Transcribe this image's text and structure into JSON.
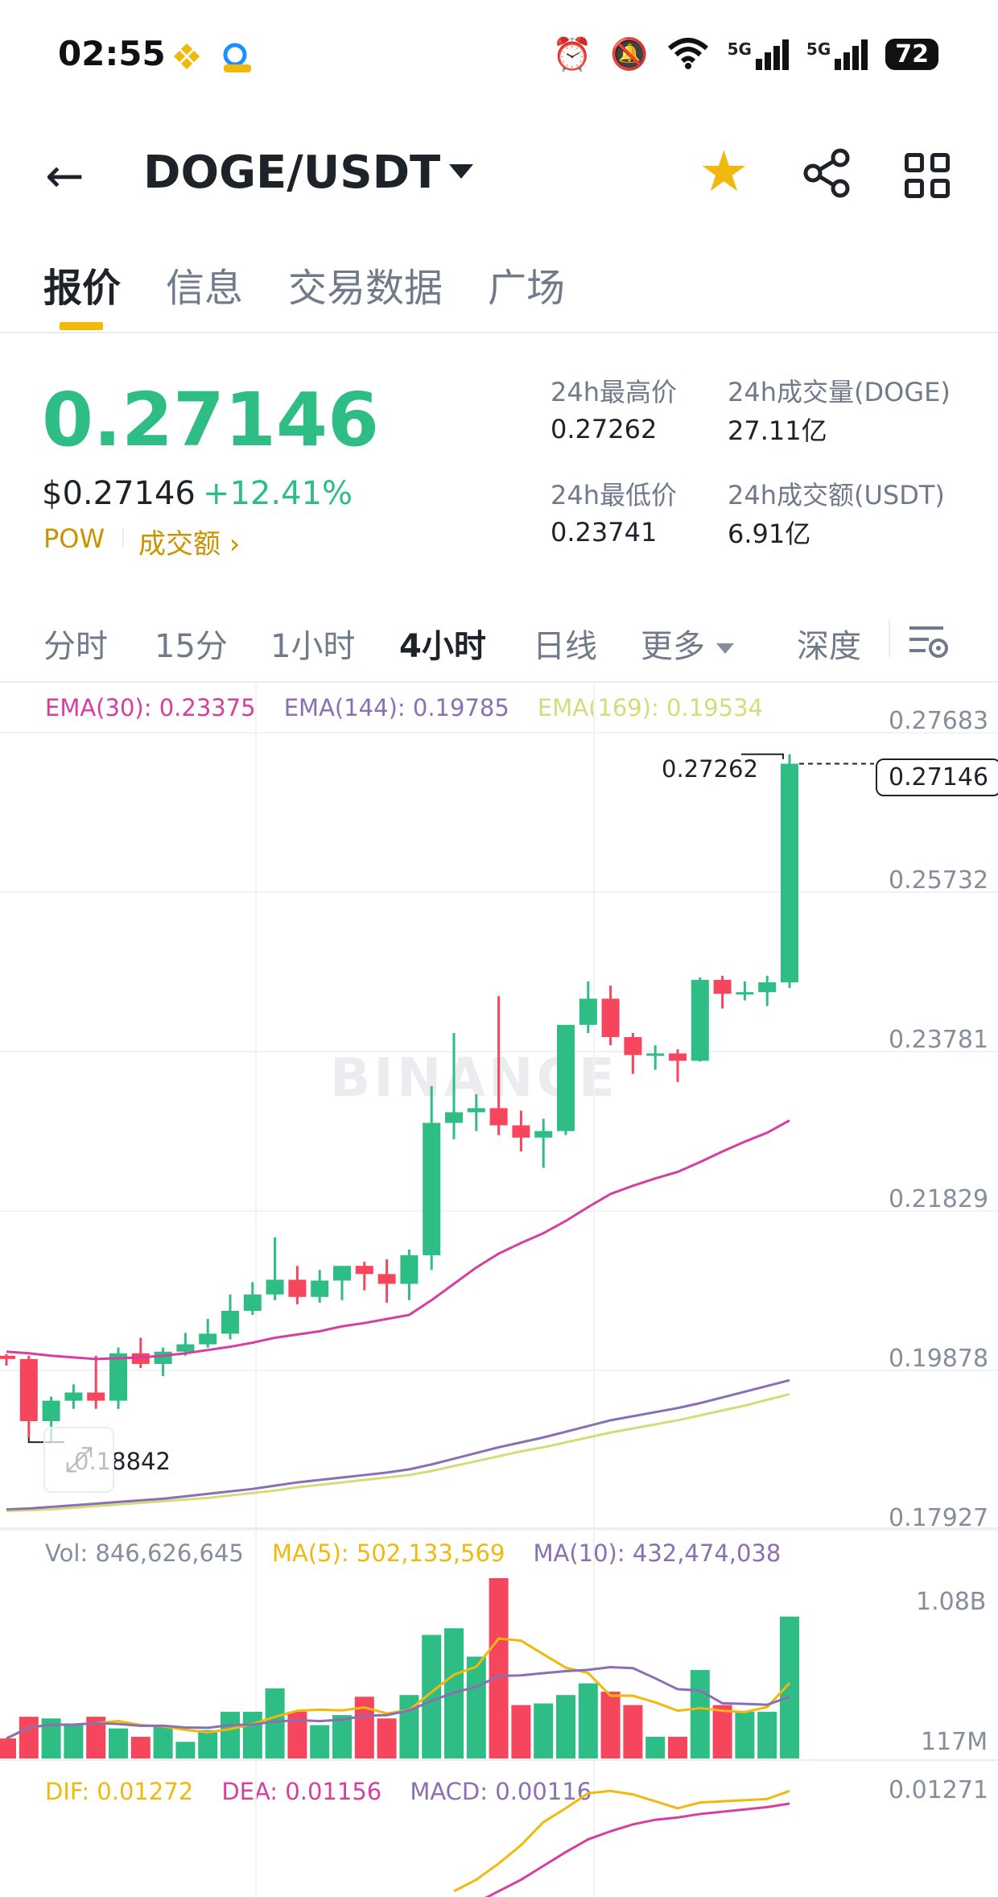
{
  "status": {
    "time": "02:55",
    "battery": "72",
    "net1": "5G",
    "net2": "5G"
  },
  "header": {
    "pair": "DOGE/USDT"
  },
  "tabs": [
    "报价",
    "信息",
    "交易数据",
    "广场"
  ],
  "price": {
    "last": "0.27146",
    "usd": "$0.27146",
    "change": "+12.41%",
    "pow": "POW",
    "turnover_link": "成交额"
  },
  "stats": {
    "high_label": "24h最高价",
    "high": "0.27262",
    "low_label": "24h最低价",
    "low": "0.23741",
    "vol_label": "24h成交量(DOGE)",
    "vol": "27.11亿",
    "amt_label": "24h成交额(USDT)",
    "amt": "6.91亿"
  },
  "intervals": [
    "分时",
    "15分",
    "1小时",
    "4小时",
    "日线",
    "更多",
    "深度"
  ],
  "active_interval": "4小时",
  "indicators": {
    "ema30": "EMA(30): 0.23375",
    "ema144": "EMA(144): 0.19785",
    "ema169": "EMA(169): 0.19534",
    "vol": "Vol: 846,626,645",
    "ma5": "MA(5): 502,133,569",
    "ma10": "MA(10): 432,474,038",
    "dif": "DIF: 0.01272",
    "dea": "DEA: 0.01156",
    "macd": "MACD: 0.00116"
  },
  "axis": {
    "price_ticks": [
      "0.27683",
      "0.25732",
      "0.23781",
      "0.21829",
      "0.19878",
      "0.17927"
    ],
    "current_price": "0.27146",
    "high_marker": "0.27262",
    "low_marker": "0.18842",
    "vol_ticks": [
      "1.08B",
      "117M"
    ],
    "macd_tick": "0.01271"
  },
  "watermark": "BINANCE",
  "colors": {
    "up": "#2ebd85",
    "down": "#f6465d",
    "ema30": "#d63ea0",
    "ema144": "#8a6fb3",
    "ema169": "#d4dc7a",
    "ma5": "#f0b90b",
    "accent": "#f0b90b"
  },
  "chart_data": {
    "type": "candlestick",
    "interval": "4小时",
    "ylim": [
      0.17927,
      0.27683
    ],
    "candles": [
      {
        "o": 0.199,
        "h": 0.1992,
        "l": 0.1978,
        "c": 0.1986
      },
      {
        "o": 0.1986,
        "h": 0.199,
        "l": 0.189,
        "c": 0.191
      },
      {
        "o": 0.191,
        "h": 0.194,
        "l": 0.1884,
        "c": 0.1935
      },
      {
        "o": 0.1935,
        "h": 0.1955,
        "l": 0.1925,
        "c": 0.1945
      },
      {
        "o": 0.1945,
        "h": 0.199,
        "l": 0.1925,
        "c": 0.1935
      },
      {
        "o": 0.1935,
        "h": 0.2,
        "l": 0.1925,
        "c": 0.1993
      },
      {
        "o": 0.1993,
        "h": 0.2012,
        "l": 0.1975,
        "c": 0.198
      },
      {
        "o": 0.198,
        "h": 0.2,
        "l": 0.1965,
        "c": 0.1995
      },
      {
        "o": 0.1995,
        "h": 0.2018,
        "l": 0.199,
        "c": 0.2004
      },
      {
        "o": 0.2004,
        "h": 0.2035,
        "l": 0.2,
        "c": 0.2017
      },
      {
        "o": 0.2017,
        "h": 0.2065,
        "l": 0.201,
        "c": 0.2045
      },
      {
        "o": 0.2045,
        "h": 0.208,
        "l": 0.204,
        "c": 0.2065
      },
      {
        "o": 0.2065,
        "h": 0.2135,
        "l": 0.2058,
        "c": 0.2083
      },
      {
        "o": 0.2083,
        "h": 0.21,
        "l": 0.2053,
        "c": 0.2062
      },
      {
        "o": 0.2062,
        "h": 0.2095,
        "l": 0.2055,
        "c": 0.2082
      },
      {
        "o": 0.2082,
        "h": 0.2098,
        "l": 0.2058,
        "c": 0.21
      },
      {
        "o": 0.21,
        "h": 0.2105,
        "l": 0.207,
        "c": 0.209
      },
      {
        "o": 0.209,
        "h": 0.2108,
        "l": 0.2055,
        "c": 0.2078
      },
      {
        "o": 0.2078,
        "h": 0.212,
        "l": 0.2058,
        "c": 0.2113
      },
      {
        "o": 0.2113,
        "h": 0.232,
        "l": 0.2095,
        "c": 0.2275
      },
      {
        "o": 0.2275,
        "h": 0.2385,
        "l": 0.2255,
        "c": 0.2288
      },
      {
        "o": 0.2288,
        "h": 0.231,
        "l": 0.2265,
        "c": 0.2293
      },
      {
        "o": 0.2293,
        "h": 0.243,
        "l": 0.226,
        "c": 0.2272
      },
      {
        "o": 0.2272,
        "h": 0.229,
        "l": 0.224,
        "c": 0.2257
      },
      {
        "o": 0.2257,
        "h": 0.228,
        "l": 0.222,
        "c": 0.2265
      },
      {
        "o": 0.2265,
        "h": 0.239,
        "l": 0.226,
        "c": 0.2395
      },
      {
        "o": 0.2395,
        "h": 0.2448,
        "l": 0.2385,
        "c": 0.2427
      },
      {
        "o": 0.2427,
        "h": 0.2443,
        "l": 0.237,
        "c": 0.238
      },
      {
        "o": 0.238,
        "h": 0.2385,
        "l": 0.2335,
        "c": 0.2358
      },
      {
        "o": 0.2358,
        "h": 0.237,
        "l": 0.234,
        "c": 0.236
      },
      {
        "o": 0.236,
        "h": 0.2365,
        "l": 0.2325,
        "c": 0.2351
      },
      {
        "o": 0.2351,
        "h": 0.2453,
        "l": 0.235,
        "c": 0.245
      },
      {
        "o": 0.245,
        "h": 0.2455,
        "l": 0.2415,
        "c": 0.2433
      },
      {
        "o": 0.2433,
        "h": 0.2448,
        "l": 0.2425,
        "c": 0.2435
      },
      {
        "o": 0.2435,
        "h": 0.2455,
        "l": 0.2418,
        "c": 0.2447
      },
      {
        "o": 0.2447,
        "h": 0.27262,
        "l": 0.244,
        "c": 0.27146
      }
    ],
    "ema30": [
      0.1995,
      0.1993,
      0.199,
      0.1988,
      0.1986,
      0.1987,
      0.1988,
      0.199,
      0.1993,
      0.1997,
      0.2001,
      0.2006,
      0.2012,
      0.2016,
      0.202,
      0.2026,
      0.203,
      0.2035,
      0.204,
      0.2058,
      0.2078,
      0.2098,
      0.2115,
      0.2128,
      0.214,
      0.2155,
      0.2172,
      0.2188,
      0.2198,
      0.2207,
      0.2215,
      0.2227,
      0.224,
      0.2252,
      0.2263,
      0.2278
    ],
    "ema144": [
      0.1802,
      0.1803,
      0.1805,
      0.1807,
      0.1809,
      0.1811,
      0.1813,
      0.1815,
      0.1818,
      0.1821,
      0.1824,
      0.1827,
      0.1831,
      0.1835,
      0.1838,
      0.1841,
      0.1844,
      0.1847,
      0.1851,
      0.1857,
      0.1864,
      0.1871,
      0.1878,
      0.1884,
      0.189,
      0.1897,
      0.1904,
      0.1911,
      0.1916,
      0.1921,
      0.1926,
      0.1932,
      0.1939,
      0.1946,
      0.1953,
      0.196
    ],
    "ema169": [
      0.18,
      0.1801,
      0.1802,
      0.1804,
      0.1806,
      0.1808,
      0.181,
      0.1812,
      0.1814,
      0.1816,
      0.1819,
      0.1822,
      0.1825,
      0.1829,
      0.1832,
      0.1835,
      0.1838,
      0.1841,
      0.1844,
      0.1849,
      0.1855,
      0.1861,
      0.1867,
      0.1873,
      0.1878,
      0.1884,
      0.189,
      0.1896,
      0.1901,
      0.1906,
      0.1911,
      0.1917,
      0.1923,
      0.1929,
      0.1936,
      0.1943
    ],
    "volume": [
      0.12,
      0.25,
      0.24,
      0.2,
      0.25,
      0.18,
      0.13,
      0.2,
      0.1,
      0.17,
      0.28,
      0.28,
      0.42,
      0.28,
      0.2,
      0.26,
      0.37,
      0.24,
      0.38,
      0.74,
      0.78,
      0.61,
      1.08,
      0.32,
      0.33,
      0.38,
      0.45,
      0.4,
      0.32,
      0.13,
      0.13,
      0.53,
      0.32,
      0.28,
      0.28,
      0.85
    ],
    "vol_ylim": [
      0.0,
      1.08
    ]
  }
}
